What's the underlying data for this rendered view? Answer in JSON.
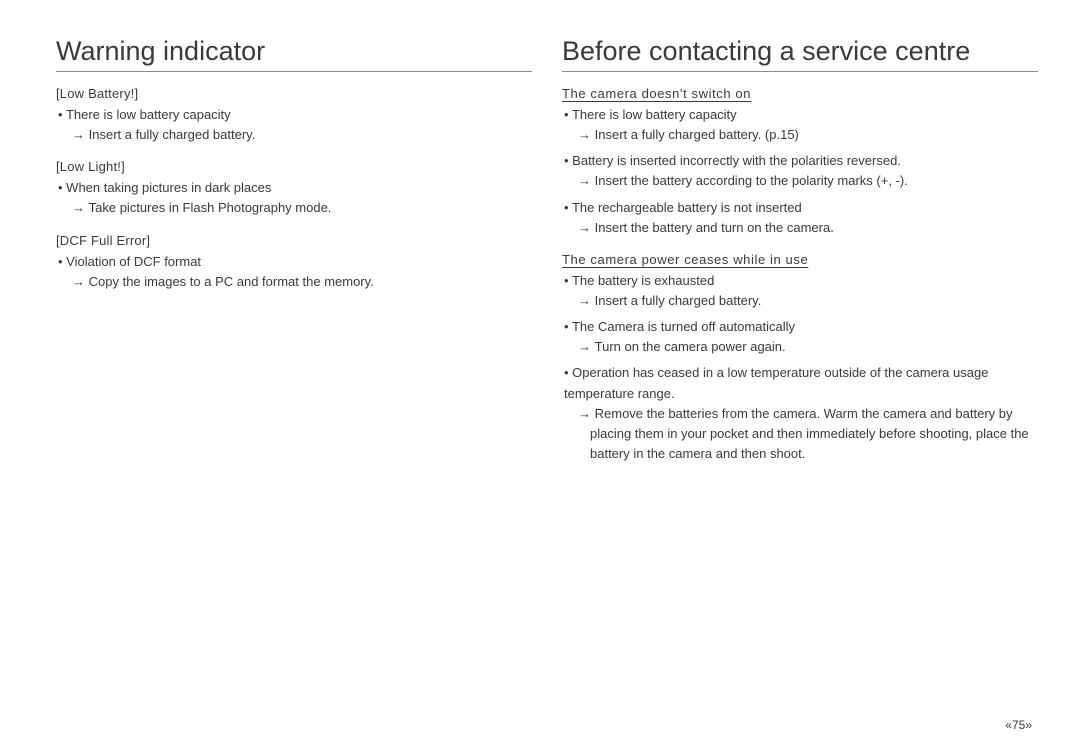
{
  "left": {
    "heading": "Warning indicator",
    "sections": [
      {
        "label": "[Low Battery!]",
        "items": [
          {
            "text": "There is low battery capacity",
            "action": "Insert a fully charged battery."
          }
        ]
      },
      {
        "label": "[Low Light!]",
        "items": [
          {
            "text": "When taking pictures in dark places",
            "action": "Take pictures in Flash Photography mode."
          }
        ]
      },
      {
        "label": "[DCF Full Error]",
        "items": [
          {
            "text": "Violation of DCF format",
            "action": "Copy the images to a PC and format the memory."
          }
        ]
      }
    ]
  },
  "right": {
    "heading": "Before contacting a service centre",
    "sections": [
      {
        "label": "The camera doesn't switch on",
        "items": [
          {
            "text": "There is low battery capacity",
            "action": "Insert a fully charged battery. (p.15)"
          },
          {
            "text": "Battery is inserted incorrectly with the polarities reversed.",
            "action": "Insert the battery according to the polarity marks (+, -)."
          },
          {
            "text": "The rechargeable battery is not inserted",
            "action": "Insert the battery and turn on the camera."
          }
        ]
      },
      {
        "label": "The camera power ceases while in use",
        "items": [
          {
            "text": "The battery is exhausted",
            "action": "Insert a fully charged battery."
          },
          {
            "text": "The Camera is turned off automatically",
            "action": "Turn on the camera power again."
          },
          {
            "text": "Operation has ceased in a low temperature outside of the camera usage temperature range.",
            "action": "Remove the batteries from the camera. Warm the camera and battery by placing them in your pocket and then immediately before shooting, place the battery in the camera and then shoot."
          }
        ]
      }
    ]
  },
  "pageNumber": "«75»"
}
